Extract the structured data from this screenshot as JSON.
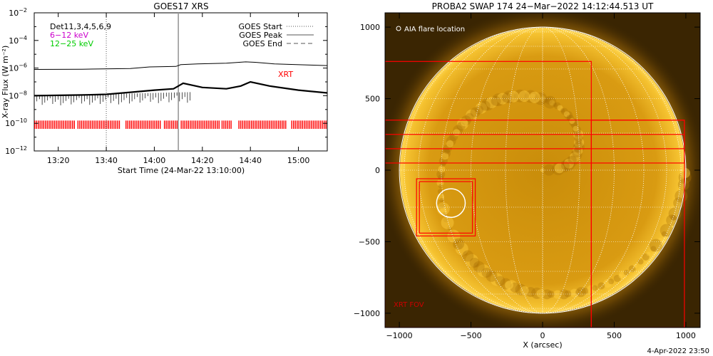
{
  "chart_data": [
    {
      "type": "line",
      "title": "GOES17 XRS",
      "xlabel": "Start Time (24-Mar-22 13:10:00)",
      "ylabel": "X-ray Flux (W m⁻²)",
      "x_range_minutes_after_13_00": [
        10,
        132
      ],
      "ylim_log10": [
        -12,
        -2
      ],
      "y_tick_exponents": [
        -12,
        -10,
        -8,
        -6,
        -4,
        -2
      ],
      "x_ticks": [
        "13:20",
        "13:40",
        "14:00",
        "14:20",
        "14:40",
        "15:00"
      ],
      "grid": false,
      "legend_position": "top-right",
      "text_block": {
        "detectors": "Det11,3,4,5,6,9",
        "band1": "6−12 keV",
        "band2": "12−25 keV",
        "band1_color": "#cc00cc",
        "band2_color": "#00cc00"
      },
      "legend": [
        {
          "name": "GOES Start",
          "style": "dotted"
        },
        {
          "name": "GOES Peak",
          "style": "solid"
        },
        {
          "name": "GOES End",
          "style": "dashed"
        }
      ],
      "annotations": [
        {
          "text": "XRT",
          "color": "#ff0000"
        }
      ],
      "vertical_markers": [
        {
          "time": "13:40",
          "style": "dotted"
        },
        {
          "time": "14:10",
          "style": "solid",
          "color": "#999999"
        }
      ],
      "series": [
        {
          "name": "long-channel",
          "color": "#000000",
          "x_time": [
            "13:10",
            "13:30",
            "13:50",
            "13:58",
            "14:09",
            "14:11",
            "14:18",
            "14:30",
            "14:38",
            "14:42",
            "14:50",
            "15:12"
          ],
          "log10_flux": [
            -6.1,
            -6.08,
            -6.03,
            -5.92,
            -5.88,
            -5.75,
            -5.7,
            -5.65,
            -5.55,
            -5.58,
            -5.7,
            -5.82
          ]
        },
        {
          "name": "short-channel",
          "color": "#000000",
          "x_time": [
            "13:10",
            "13:30",
            "13:40",
            "13:50",
            "14:00",
            "14:08",
            "14:12",
            "14:20",
            "14:30",
            "14:36",
            "14:40",
            "14:48",
            "15:00",
            "15:12"
          ],
          "log10_flux": [
            -8.0,
            -7.95,
            -7.9,
            -7.75,
            -7.6,
            -7.5,
            -7.1,
            -7.4,
            -7.5,
            -7.3,
            -7.0,
            -7.3,
            -7.6,
            -7.8
          ]
        }
      ],
      "xrt_coverage_intervals": [
        [
          "13:10",
          "13:27"
        ],
        [
          "13:28",
          "13:46"
        ],
        [
          "13:48",
          "14:03"
        ],
        [
          "14:04",
          "14:10"
        ],
        [
          "14:11",
          "14:27"
        ],
        [
          "14:28",
          "14:32"
        ],
        [
          "14:35",
          "14:55"
        ],
        [
          "14:57",
          "15:12"
        ]
      ]
    },
    {
      "type": "scatter",
      "title": "PROBA2 SWAP 174 24−Mar−2022 14:12:44.513 UT",
      "xlabel": "X (arcsec)",
      "ylabel": "",
      "xlim": [
        -1100,
        1100
      ],
      "ylim": [
        -1100,
        1100
      ],
      "x_ticks": [
        -1000,
        -500,
        0,
        500,
        1000
      ],
      "y_ticks": [
        -1000,
        -500,
        0,
        500,
        1000
      ],
      "legend": [
        {
          "name": "AIA flare location",
          "marker": "circle"
        }
      ],
      "annotations": [
        {
          "text": "XRT FOV",
          "color": "#ff0000"
        }
      ],
      "solar_radius_arcsec": 1000,
      "flare_location": {
        "x": -640,
        "y": -230
      },
      "fov_boxes": [
        {
          "x": [
            -1100,
            340
          ],
          "y": [
            -1100,
            760
          ]
        },
        {
          "x": [
            -880,
            -470
          ],
          "y": [
            -460,
            -60
          ]
        },
        {
          "x": [
            -860,
            -490
          ],
          "y": [
            -440,
            -80
          ]
        },
        {
          "x": [
            -1100,
            990
          ],
          "y": [
            50,
            350
          ]
        },
        {
          "x": [
            -1100,
            990
          ],
          "y": [
            150,
            250
          ]
        },
        {
          "x": [
            340,
            990
          ],
          "y": [
            -1100,
            350
          ]
        }
      ]
    }
  ],
  "footer": {
    "timestamp": "4-Apr-2022 23:50"
  }
}
